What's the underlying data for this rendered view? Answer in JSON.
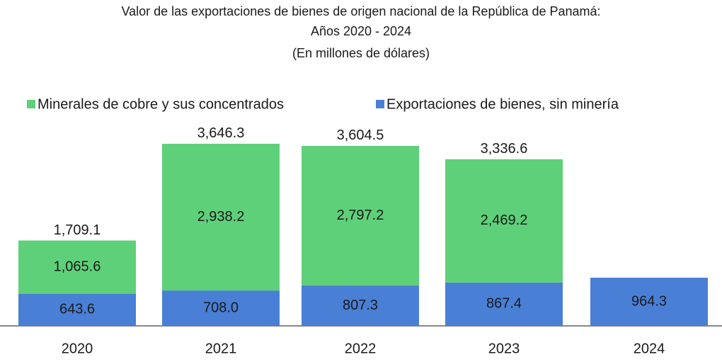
{
  "chart_data": {
    "type": "stacked_bar",
    "title": [
      "Valor de las exportaciones de bienes de origen nacional de la República de Panamá:",
      "Años 2020 - 2024"
    ],
    "subtitle": "(En millones de dólares)",
    "categories": [
      "2020",
      "2021",
      "2022",
      "2023",
      "2024"
    ],
    "series": [
      {
        "name": "Exportaciones de bienes, sin minería",
        "color": "#4a7fd6",
        "values": [
          643.6,
          708.0,
          807.3,
          867.4,
          964.3
        ],
        "value_labels": [
          "643.6",
          "708.0",
          "807.3",
          "867.4",
          "964.3"
        ]
      },
      {
        "name": "Minerales de cobre y sus concentrados",
        "color": "#5fd07a",
        "values": [
          1065.6,
          2938.2,
          2797.2,
          2469.2,
          null
        ],
        "value_labels": [
          "1,065.6",
          "2,938.2",
          "2,797.2",
          "2,469.2",
          null
        ]
      }
    ],
    "totals": [
      1709.1,
      3646.3,
      3604.5,
      3336.6,
      null
    ],
    "total_labels": [
      "1,709.1",
      "3,646.3",
      "3,604.5",
      "3,336.6",
      null
    ]
  }
}
